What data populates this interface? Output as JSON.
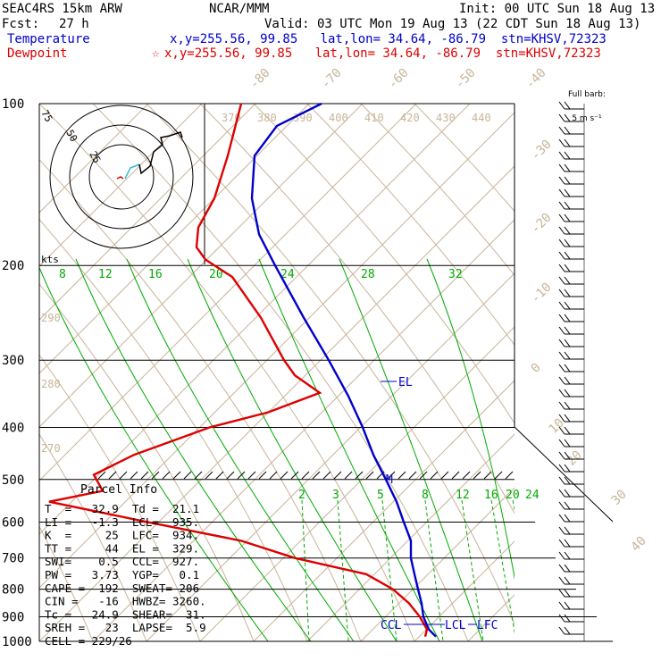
{
  "header": {
    "model": "SEAC4RS 15km ARW",
    "org": "NCAR/MMM",
    "init": "Init: 00 UTC Sun 18 Aug 13",
    "fcst_label": "Fcst:",
    "fcst_value": "27 h",
    "valid": "Valid: 03 UTC Mon 19 Aug 13 (22 CDT Sun 18 Aug 13)",
    "temperature_label": "Temperature",
    "temperature_info": "x,y=255.56, 99.85   lat,lon= 34.64, -86.79  stn=KHSV,72323",
    "dewpoint_label": "Dewpoint",
    "dewpoint_info": "x,y=255.56, 99.85   lat,lon= 34.64, -86.79  stn=KHSV,72323",
    "barb_key_line1": "Full barb:",
    "barb_key_line2": "5 m s⁻¹"
  },
  "colors": {
    "temperature": "#0000cc",
    "dewpoint": "#dd0000",
    "isotherm": "#c8b49a",
    "mixing_ratio": "#00aa00",
    "isobar": "#000000"
  },
  "chart_data": {
    "type": "line",
    "title": "",
    "y_axis": "pressure (hPa), log scale",
    "pressure_ticks": [
      100,
      200,
      300,
      400,
      500,
      600,
      700,
      800,
      900,
      1000
    ],
    "pressure_tick_labels": [
      "100",
      "200",
      "300",
      "400",
      "500",
      "600",
      "700",
      "800",
      "900",
      "1000"
    ],
    "isotherm_labels_top": [
      "-80",
      "-70",
      "-60",
      "-50",
      "-40"
    ],
    "isotherm_labels_right": [
      "-30",
      "-20",
      "-10",
      "0",
      "10",
      "20",
      "30",
      "40"
    ],
    "theta_labels_top": [
      "370",
      "380",
      "390",
      "400",
      "410",
      "420",
      "430",
      "440"
    ],
    "theta_labels_left": [
      "290",
      "280",
      "270"
    ],
    "mixing_ratio_labels_upper": [
      "8",
      "12",
      "16",
      "20",
      "24",
      "28",
      "32"
    ],
    "mixing_ratio_labels_lower": [
      "2",
      "3",
      "5",
      "8",
      "12",
      "16",
      "20",
      "24"
    ],
    "series": [
      {
        "name": "Temperature",
        "points_p": [
          100,
          110,
          125,
          150,
          175,
          200,
          250,
          300,
          350,
          400,
          450,
          500,
          550,
          600,
          650,
          700,
          750,
          800,
          850,
          900,
          950,
          980
        ],
        "points_x": [
          360,
          310,
          285,
          282,
          290,
          308,
          340,
          368,
          390,
          406,
          418,
          432,
          444,
          452,
          460,
          460,
          464,
          468,
          472,
          474,
          480,
          488
        ]
      },
      {
        "name": "Dewpoint",
        "points_p": [
          100,
          125,
          150,
          170,
          185,
          195,
          210,
          250,
          300,
          320,
          345,
          375,
          400,
          450,
          490,
          525,
          550,
          600,
          650,
          700,
          750,
          800,
          850,
          900,
          950,
          980
        ],
        "points_x": [
          270,
          255,
          240,
          222,
          220,
          230,
          260,
          292,
          318,
          330,
          358,
          300,
          235,
          150,
          105,
          115,
          55,
          165,
          270,
          330,
          410,
          440,
          458,
          470,
          478,
          476
        ]
      }
    ],
    "annotations": {
      "el": "EL",
      "m": "M",
      "ccl": "CCL",
      "lcl": "LCL",
      "lfc": "LFC"
    },
    "hodograph": {
      "ring_label_1": "75",
      "ring_label_2": "50",
      "ring_label_3": "25",
      "units": "kts"
    }
  },
  "parcel_info": {
    "title": "Parcel Info",
    "rows": [
      "T  =   32.9  Td =  21.1",
      "LI =   -1.3  LCL=  935.",
      "K  =     25  LFC=  934.",
      "TT =     44  EL =  329.",
      "SWI=    0.5  CCL=  927.",
      "PW =   3.73  YGP=   0.1",
      "CAPE =  192  SWEAT= 206",
      "CIN =   -16  HWBZ= 3260.",
      "Tc =   24.9  SHEAR=  31.",
      "SREH =   23  LAPSE=  5.9",
      "CELL = 229/26"
    ]
  }
}
